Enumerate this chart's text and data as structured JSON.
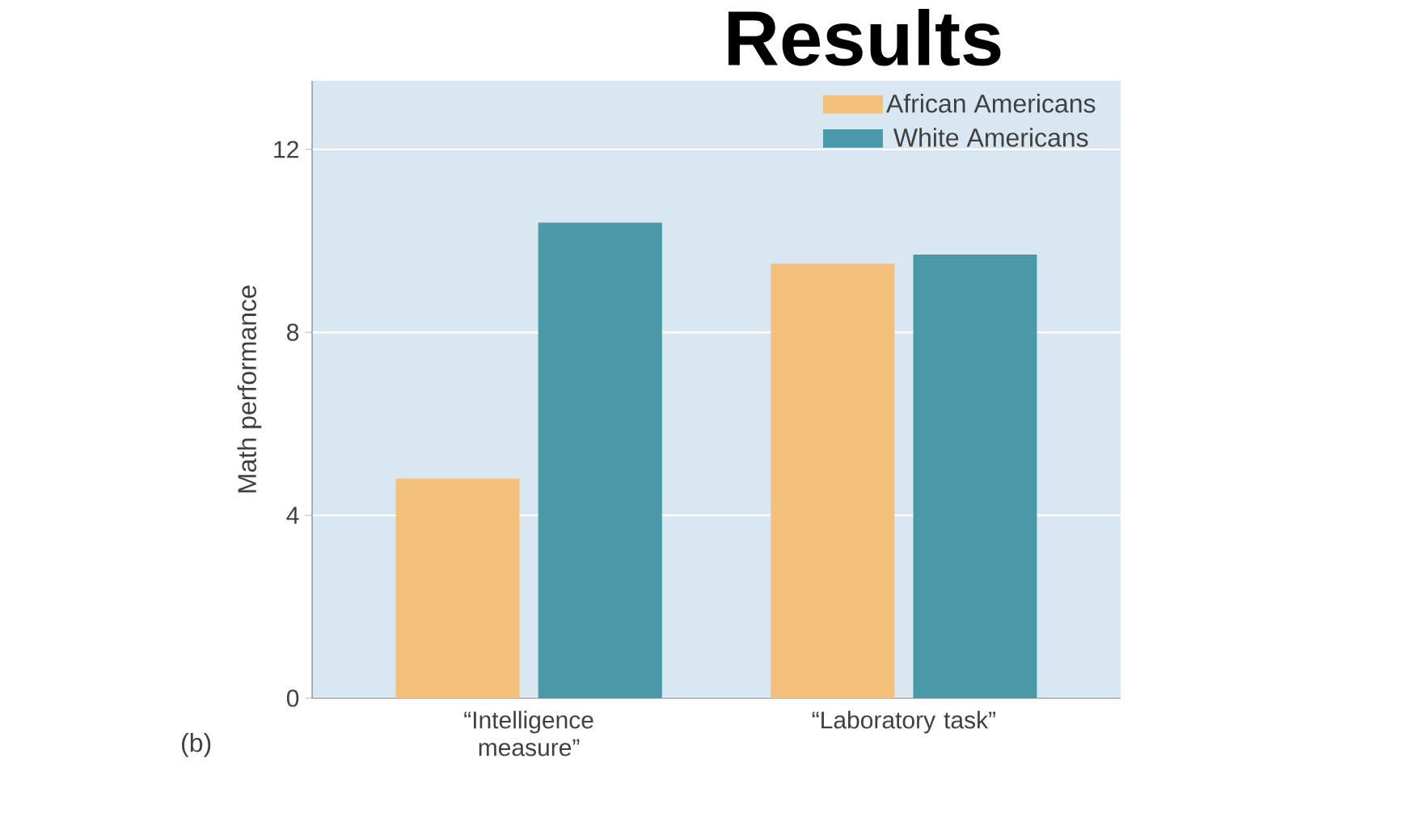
{
  "chart_data": {
    "type": "bar",
    "title": "Results",
    "categories": [
      "“Intelligence measure”",
      "“Laboratory task”"
    ],
    "ylabel": "Math performance",
    "series": [
      {
        "name": "African Americans",
        "color": "#f3c07c",
        "values": [
          4.8,
          9.5
        ]
      },
      {
        "name": "White Americans",
        "color": "#4a98a8",
        "values": [
          10.4,
          9.7
        ]
      }
    ],
    "ylim": [
      0,
      13.5
    ],
    "yticks": [
      0,
      4,
      8,
      12
    ],
    "grid": "y",
    "legend": "top right",
    "annotations": [
      "(b)"
    ]
  }
}
